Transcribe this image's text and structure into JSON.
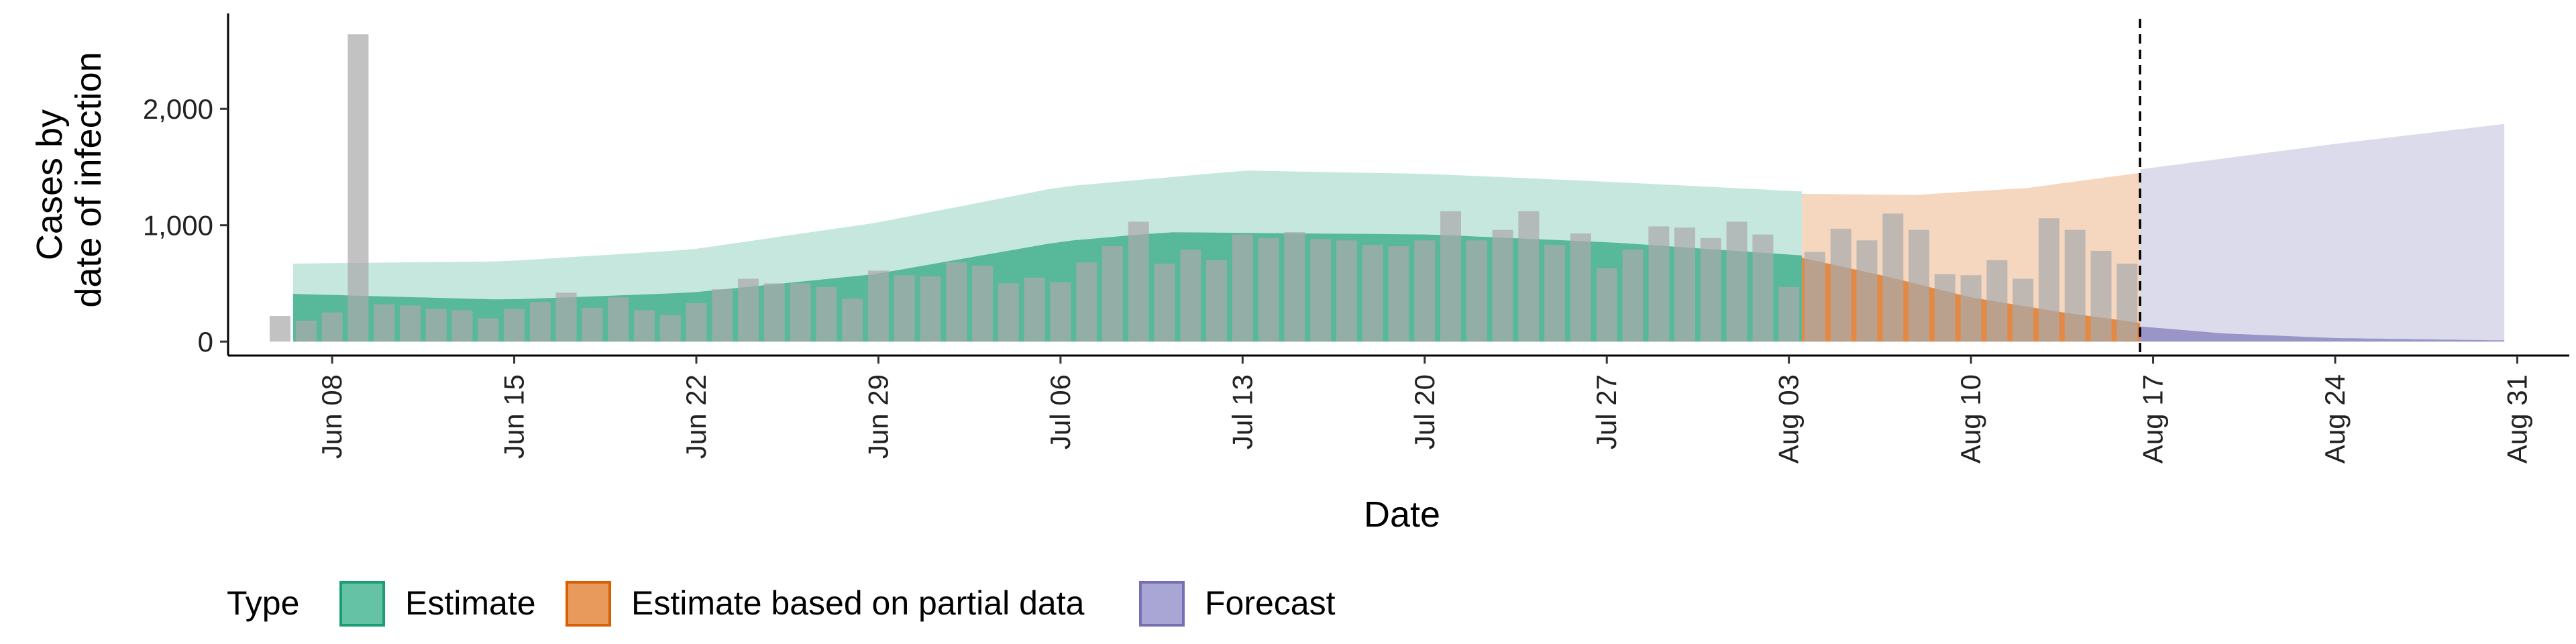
{
  "chart_data": {
    "type": "bar",
    "xlabel": "Date",
    "ylabel_lines": [
      "Cases by",
      "date of infection"
    ],
    "x_start": "2020-06-01",
    "xlim": [
      "2020-06-04",
      "2020-09-02"
    ],
    "ylim": [
      -120,
      2820
    ],
    "x_ticks": [
      {
        "date": "2020-06-08",
        "label": "Jun 08"
      },
      {
        "date": "2020-06-15",
        "label": "Jun 15"
      },
      {
        "date": "2020-06-22",
        "label": "Jun 22"
      },
      {
        "date": "2020-06-29",
        "label": "Jun 29"
      },
      {
        "date": "2020-07-06",
        "label": "Jul 06"
      },
      {
        "date": "2020-07-13",
        "label": "Jul 13"
      },
      {
        "date": "2020-07-20",
        "label": "Jul 20"
      },
      {
        "date": "2020-07-27",
        "label": "Jul 27"
      },
      {
        "date": "2020-08-03",
        "label": "Aug 03"
      },
      {
        "date": "2020-08-10",
        "label": "Aug 10"
      },
      {
        "date": "2020-08-17",
        "label": "Aug 17"
      },
      {
        "date": "2020-08-24",
        "label": "Aug 24"
      },
      {
        "date": "2020-08-31",
        "label": "Aug 31"
      }
    ],
    "y_ticks": [
      {
        "value": 0,
        "label": "0"
      },
      {
        "value": 1000,
        "label": "1,000"
      },
      {
        "value": 2000,
        "label": "2,000"
      }
    ],
    "observed_cases": {
      "start_date": "2020-06-06",
      "values": [
        220,
        180,
        250,
        2640,
        320,
        310,
        280,
        270,
        200,
        280,
        340,
        420,
        290,
        380,
        270,
        230,
        330,
        450,
        540,
        500,
        500,
        470,
        370,
        610,
        570,
        560,
        680,
        650,
        500,
        550,
        510,
        680,
        820,
        1030,
        670,
        790,
        700,
        920,
        890,
        940,
        880,
        870,
        830,
        820,
        870,
        1120,
        870,
        960,
        1120,
        830,
        930,
        630,
        790,
        990,
        980,
        890,
        1030,
        920,
        470,
        770,
        970,
        870,
        1100,
        960,
        580,
        570,
        700,
        540,
        1060,
        960,
        780,
        670
      ]
    },
    "observed_bar_color": "#aaaaaa",
    "series": [
      {
        "name": "Estimate",
        "color": "#1b9e77",
        "start_date": "2020-06-07",
        "end_date": "2020-08-03",
        "band_inner_upper_points": [
          [
            "2020-06-07",
            410
          ],
          [
            "2020-06-15",
            360
          ],
          [
            "2020-06-22",
            420
          ],
          [
            "2020-06-29",
            580
          ],
          [
            "2020-07-06",
            860
          ],
          [
            "2020-07-10",
            940
          ],
          [
            "2020-07-20",
            920
          ],
          [
            "2020-07-27",
            850
          ],
          [
            "2020-08-03",
            740
          ]
        ],
        "band_outer_upper_points": [
          [
            "2020-06-07",
            670
          ],
          [
            "2020-06-15",
            690
          ],
          [
            "2020-06-22",
            790
          ],
          [
            "2020-06-29",
            1020
          ],
          [
            "2020-07-06",
            1330
          ],
          [
            "2020-07-13",
            1470
          ],
          [
            "2020-07-20",
            1440
          ],
          [
            "2020-07-27",
            1370
          ],
          [
            "2020-08-03",
            1290
          ]
        ]
      },
      {
        "name": "Estimate based on partial data",
        "color": "#d95f02",
        "start_date": "2020-08-04",
        "end_date": "2020-08-16",
        "band_inner_upper_points": [
          [
            "2020-08-04",
            720
          ],
          [
            "2020-08-07",
            560
          ],
          [
            "2020-08-10",
            380
          ],
          [
            "2020-08-13",
            260
          ],
          [
            "2020-08-16",
            160
          ]
        ],
        "band_outer_upper_points": [
          [
            "2020-08-04",
            1270
          ],
          [
            "2020-08-08",
            1260
          ],
          [
            "2020-08-12",
            1320
          ],
          [
            "2020-08-16",
            1450
          ]
        ]
      },
      {
        "name": "Forecast",
        "color": "#7570b3",
        "start_date": "2020-08-17",
        "end_date": "2020-08-30",
        "band_inner_upper_points": [
          [
            "2020-08-17",
            130
          ],
          [
            "2020-08-20",
            70
          ],
          [
            "2020-08-24",
            30
          ],
          [
            "2020-08-30",
            10
          ]
        ],
        "band_outer_upper_points": [
          [
            "2020-08-17",
            1480
          ],
          [
            "2020-08-24",
            1700
          ],
          [
            "2020-08-30",
            1870
          ]
        ]
      }
    ],
    "inner_band_opacity": 0.65,
    "outer_band_opacity": 0.25,
    "vline_date": "2020-08-16",
    "legend_title": "Type",
    "legend": [
      {
        "label": "Estimate",
        "fill": "#66c2a4",
        "stroke": "#1b9e77"
      },
      {
        "label": "Estimate based on partial data",
        "fill": "#e89a5c",
        "stroke": "#d95f02"
      },
      {
        "label": "Forecast",
        "fill": "#a9a6d6",
        "stroke": "#7570b3"
      }
    ],
    "legend_position": "bottom"
  }
}
